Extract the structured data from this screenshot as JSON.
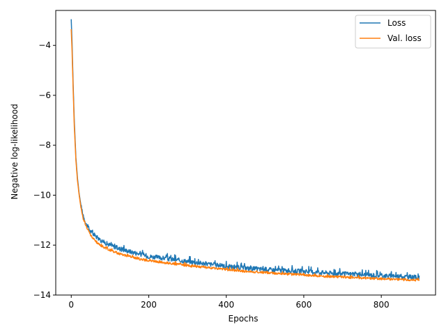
{
  "chart_data": {
    "type": "line",
    "title": "",
    "xlabel": "Epochs",
    "ylabel": "Negative log-likelihood",
    "xlim": [
      -40,
      940
    ],
    "ylim": [
      -14.0,
      -2.6
    ],
    "xticks": [
      0,
      200,
      400,
      600,
      800
    ],
    "yticks": [
      -4,
      -6,
      -8,
      -10,
      -12,
      -14
    ],
    "xtick_labels": [
      "0",
      "200",
      "400",
      "600",
      "800"
    ],
    "ytick_labels": [
      "−4",
      "−6",
      "−8",
      "−10",
      "−12",
      "−14"
    ],
    "grid": false,
    "legend_position": "top-right",
    "series": [
      {
        "name": "Loss",
        "color": "#1f77b4",
        "x": [
          0,
          2,
          5,
          8,
          12,
          16,
          20,
          25,
          30,
          40,
          50,
          60,
          70,
          80,
          100,
          125,
          150,
          175,
          200,
          250,
          300,
          350,
          400,
          450,
          500,
          550,
          600,
          650,
          700,
          750,
          800,
          850,
          898
        ],
        "y": [
          -2.95,
          -3.9,
          -5.6,
          -7.1,
          -8.5,
          -9.3,
          -9.9,
          -10.4,
          -10.8,
          -11.2,
          -11.45,
          -11.6,
          -11.75,
          -11.85,
          -12.0,
          -12.15,
          -12.25,
          -12.35,
          -12.45,
          -12.55,
          -12.65,
          -12.75,
          -12.85,
          -12.92,
          -12.97,
          -13.02,
          -13.05,
          -13.1,
          -13.15,
          -13.18,
          -13.22,
          -13.25,
          -13.3
        ],
        "noise": 0.09
      },
      {
        "name": "Val. loss",
        "color": "#ff7f0e",
        "x": [
          0,
          2,
          5,
          8,
          12,
          16,
          20,
          25,
          30,
          40,
          50,
          60,
          70,
          80,
          100,
          125,
          150,
          175,
          200,
          250,
          300,
          350,
          400,
          450,
          500,
          550,
          600,
          650,
          700,
          750,
          800,
          850,
          898
        ],
        "y": [
          -3.35,
          -4.2,
          -5.8,
          -7.3,
          -8.6,
          -9.4,
          -9.95,
          -10.5,
          -10.9,
          -11.3,
          -11.6,
          -11.8,
          -11.95,
          -12.05,
          -12.2,
          -12.35,
          -12.45,
          -12.55,
          -12.62,
          -12.72,
          -12.82,
          -12.9,
          -12.98,
          -13.05,
          -13.1,
          -13.15,
          -13.2,
          -13.25,
          -13.28,
          -13.32,
          -13.35,
          -13.38,
          -13.4
        ],
        "noise": 0.045
      }
    ]
  }
}
